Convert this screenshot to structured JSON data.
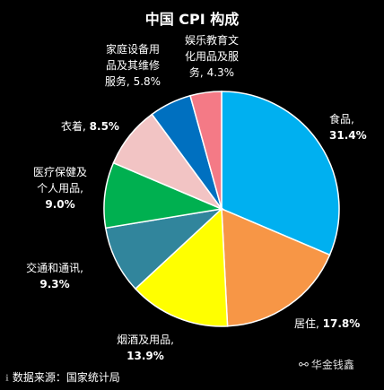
{
  "chart_data": {
    "type": "pie",
    "title": "中国 CPI 构成",
    "slices": [
      {
        "name": "食品,",
        "value": 31.4,
        "label": "31.4%",
        "color": "#00B0F0"
      },
      {
        "name": "居住,",
        "value": 17.8,
        "label": "17.8%",
        "color": "#F79646"
      },
      {
        "name": "烟酒及用品,",
        "value": 13.9,
        "label": "13.9%",
        "color": "#FFFF00"
      },
      {
        "name": "交通和通讯,",
        "value": 9.3,
        "label": "9.3%",
        "color": "#31859C"
      },
      {
        "name": "医疗保健及个人用品,",
        "value": 9.0,
        "label": "9.0%",
        "color": "#00B050"
      },
      {
        "name": "衣着,",
        "value": 8.5,
        "label": "8.5%",
        "color": "#F2C4C4"
      },
      {
        "name": "家庭设备用品及其维修服务,",
        "value": 5.8,
        "label": "5.8%",
        "color": "#0070C0"
      },
      {
        "name": "娱乐教育文化用品及服务,",
        "value": 4.3,
        "label": "4.3%",
        "color": "#F47A86"
      }
    ],
    "start": "12 o'clock",
    "direction": "clockwise"
  },
  "label_text": {
    "food": {
      "line1": "食品,",
      "pct": "31.4%"
    },
    "housing": {
      "line1": "居住,",
      "pct": "17.8%"
    },
    "tobacco": {
      "line1": "烟酒及用品,",
      "pct": "13.9%"
    },
    "transport": {
      "line1": "交通和通讯,",
      "pct": "9.3%"
    },
    "medical": {
      "line1": "医疗保健及",
      "line2": "个人用品,",
      "pct": "9.0%"
    },
    "clothing": {
      "line1": "衣着,",
      "pct": "8.5%"
    },
    "household": {
      "line1": "家庭设备用",
      "line2": "品及其维修",
      "line3": "服务,",
      "pct": "5.8%"
    },
    "entertainment": {
      "line1": "娱乐教育文",
      "line2": "化用品及服",
      "line3": "务,",
      "pct": "4.3%"
    }
  },
  "footer": {
    "source": "数据来源：国家统计局",
    "watermark": "华金钱鑫"
  },
  "colors": {
    "background": "#000000",
    "border": "#FFFFFF",
    "text": "#FFFFFF"
  }
}
